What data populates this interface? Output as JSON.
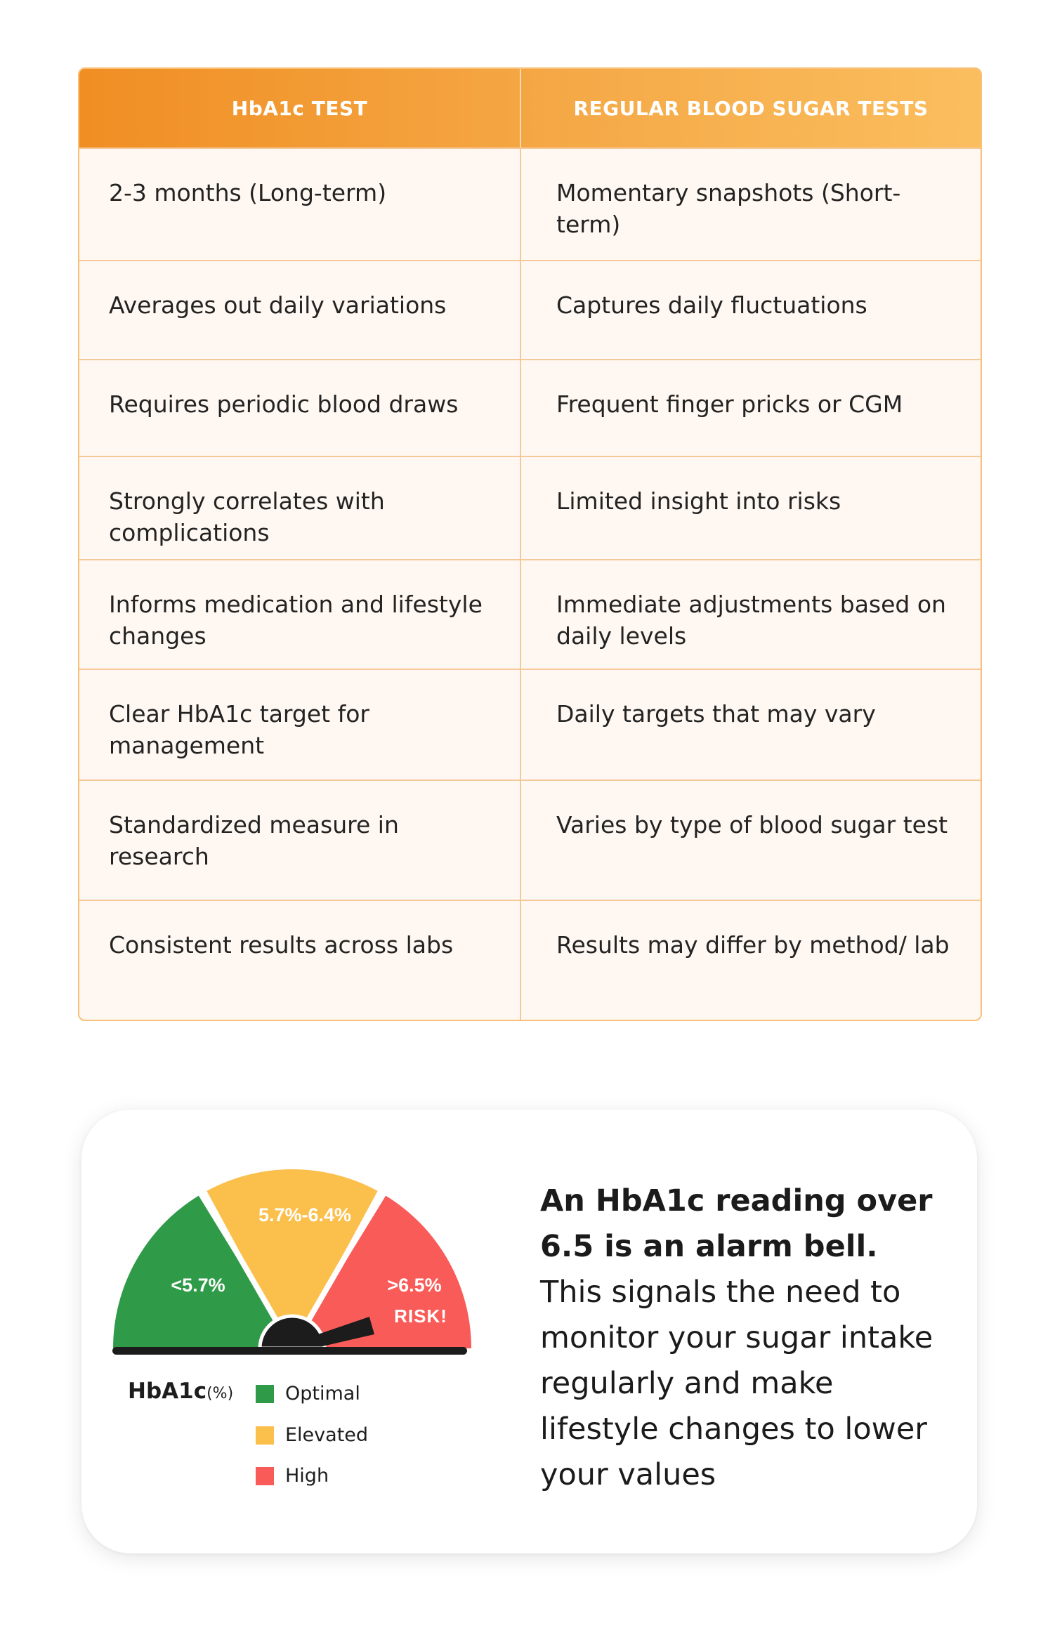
{
  "table": {
    "headers": [
      "HbA1c TEST",
      "REGULAR BLOOD SUGAR TESTS"
    ],
    "rows": [
      [
        "2-3 months (Long-term)",
        "Momentary snapshots (Short-term)"
      ],
      [
        "Averages out daily variations",
        "Captures daily fluctuations"
      ],
      [
        "Requires periodic blood draws",
        "Frequent finger pricks or CGM"
      ],
      [
        "Strongly correlates with complications",
        "Limited insight into risks"
      ],
      [
        "Informs medication and lifestyle changes",
        "Immediate adjustments based on daily levels"
      ],
      [
        "Clear HbA1c target for management",
        "Daily targets that may vary"
      ],
      [
        "Standardized measure in research",
        "Varies by type of blood sugar test"
      ],
      [
        "Consistent results across labs",
        "Results may differ by method/ lab"
      ]
    ]
  },
  "gauge": {
    "segments": [
      {
        "label": "<5.7%",
        "color": "#2f9a47"
      },
      {
        "label": "5.7%-6.4%",
        "color": "#fbbf4c"
      },
      {
        "label": ">6.5%",
        "color": "#f95c58"
      }
    ],
    "risk_label": "RISK!",
    "needle_color": "#1c1c1c"
  },
  "legend": {
    "title": "HbA1c",
    "unit": "(%)",
    "items": [
      {
        "label": "Optimal",
        "color": "#2f9a47"
      },
      {
        "label": "Elevated",
        "color": "#fbbf4c"
      },
      {
        "label": "High",
        "color": "#f95c58"
      }
    ]
  },
  "callout": {
    "bold": "An HbA1c reading over 6.5 is an alarm bell.",
    "text": "This signals the need to monitor your sugar intake regularly and make lifestyle changes to lower your values"
  }
}
